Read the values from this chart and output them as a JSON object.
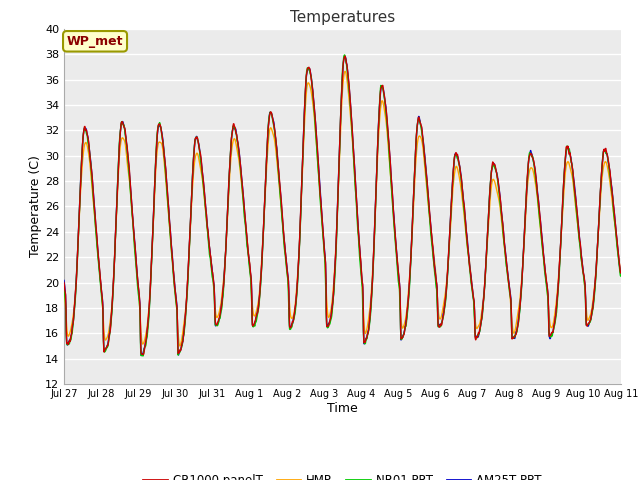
{
  "title": "Temperatures",
  "xlabel": "Time",
  "ylabel": "Temperature (C)",
  "ylim": [
    12,
    40
  ],
  "yticks": [
    12,
    14,
    16,
    18,
    20,
    22,
    24,
    26,
    28,
    30,
    32,
    34,
    36,
    38,
    40
  ],
  "annotation_text": "WP_met",
  "annotation_color": "#8B0000",
  "annotation_bg": "#FFFFCC",
  "annotation_border": "#999900",
  "fig_bg": "#FFFFFF",
  "plot_bg": "#EBEBEB",
  "grid_color": "#FFFFFF",
  "series": {
    "CR1000 panelT": {
      "color": "#CC0000",
      "lw": 1.0
    },
    "HMP": {
      "color": "#FFA500",
      "lw": 1.0
    },
    "NR01 PRT": {
      "color": "#00CC00",
      "lw": 1.0
    },
    "AM25T PRT": {
      "color": "#0000CC",
      "lw": 1.0
    }
  },
  "xtick_labels": [
    "Jul 27",
    "Jul 28",
    "Jul 29",
    "Jul 30",
    "Jul 31",
    "Aug 1",
    "Aug 2",
    "Aug 3",
    "Aug 4",
    "Aug 5",
    "Aug 6",
    "Aug 7",
    "Aug 8",
    "Aug 9",
    "Aug 10",
    "Aug 11"
  ],
  "num_days": 15,
  "points_per_day": 96
}
